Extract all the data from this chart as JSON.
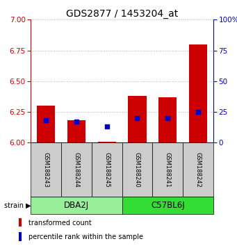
{
  "title": "GDS2877 / 1453204_at",
  "samples": [
    "GSM188243",
    "GSM188244",
    "GSM188245",
    "GSM188240",
    "GSM188241",
    "GSM188242"
  ],
  "red_tops": [
    6.3,
    6.18,
    6.01,
    6.38,
    6.37,
    6.8
  ],
  "blue_values": [
    6.18,
    6.17,
    6.13,
    6.2,
    6.2,
    6.25
  ],
  "base": 6.0,
  "ylim_left": [
    6.0,
    7.0
  ],
  "ylim_right": [
    0,
    100
  ],
  "yticks_left": [
    6.0,
    6.25,
    6.5,
    6.75,
    7.0
  ],
  "yticks_right": [
    0,
    25,
    50,
    75,
    100
  ],
  "yticklabels_right": [
    "0",
    "25",
    "50",
    "75",
    "100%"
  ],
  "groups": [
    {
      "label": "DBA2J",
      "indices": [
        0,
        1,
        2
      ],
      "color": "#99ee99"
    },
    {
      "label": "C57BL6J",
      "indices": [
        3,
        4,
        5
      ],
      "color": "#33dd33"
    }
  ],
  "bar_width": 0.6,
  "red_color": "#cc0000",
  "blue_color": "#0000cc",
  "blue_square_size": 25,
  "axis_label_color_left": "#cc0000",
  "axis_label_color_right": "#0000cc",
  "grid_color": "#000000",
  "grid_alpha": 0.3,
  "sample_box_color": "#cccccc",
  "strain_label": "strain",
  "legend_items": [
    {
      "color": "#cc0000",
      "label": "transformed count"
    },
    {
      "color": "#0000cc",
      "label": "percentile rank within the sample"
    }
  ],
  "title_fontsize": 10,
  "tick_fontsize": 7.5,
  "sample_fontsize": 6,
  "legend_fontsize": 7,
  "group_label_fontsize": 8.5
}
